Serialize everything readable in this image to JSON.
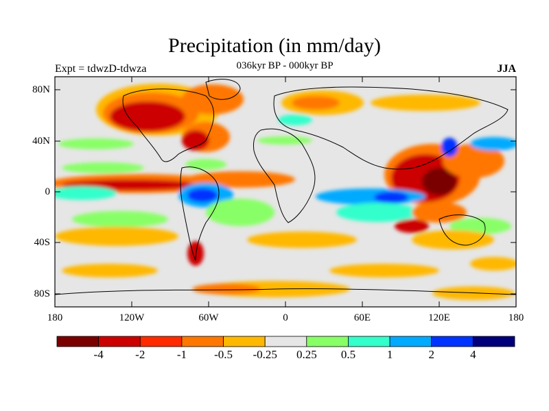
{
  "title": "Precipitation (in mm/day)",
  "subtitle": "036kyr BP - 000kyr BP",
  "left_label": "Expt = tdwzD-tdwza",
  "right_label": "JJA",
  "lat_ticks": [
    "80N",
    "40N",
    "0",
    "40S",
    "80S"
  ],
  "lon_ticks": [
    "180",
    "120W",
    "60W",
    "0",
    "60E",
    "120E",
    "180"
  ],
  "colorbar": {
    "labels": [
      "-4",
      "-2",
      "-1",
      "-0.5",
      "-0.25",
      "0.25",
      "0.5",
      "1",
      "2",
      "4"
    ],
    "colors": [
      "#7a0000",
      "#cc0000",
      "#ff2a00",
      "#ff7700",
      "#ffb800",
      "#e6e6e6",
      "#88ff66",
      "#33ffcc",
      "#00aaff",
      "#0033ff",
      "#00007a"
    ]
  },
  "palette": {
    "dry_strong": "#cc0000",
    "dry_mid": "#ff7700",
    "dry_weak": "#ffb800",
    "neutral": "#e6e6e6",
    "wet_weak": "#88ff66",
    "wet_mid": "#33ffcc",
    "wet_strong": "#0033ff"
  }
}
